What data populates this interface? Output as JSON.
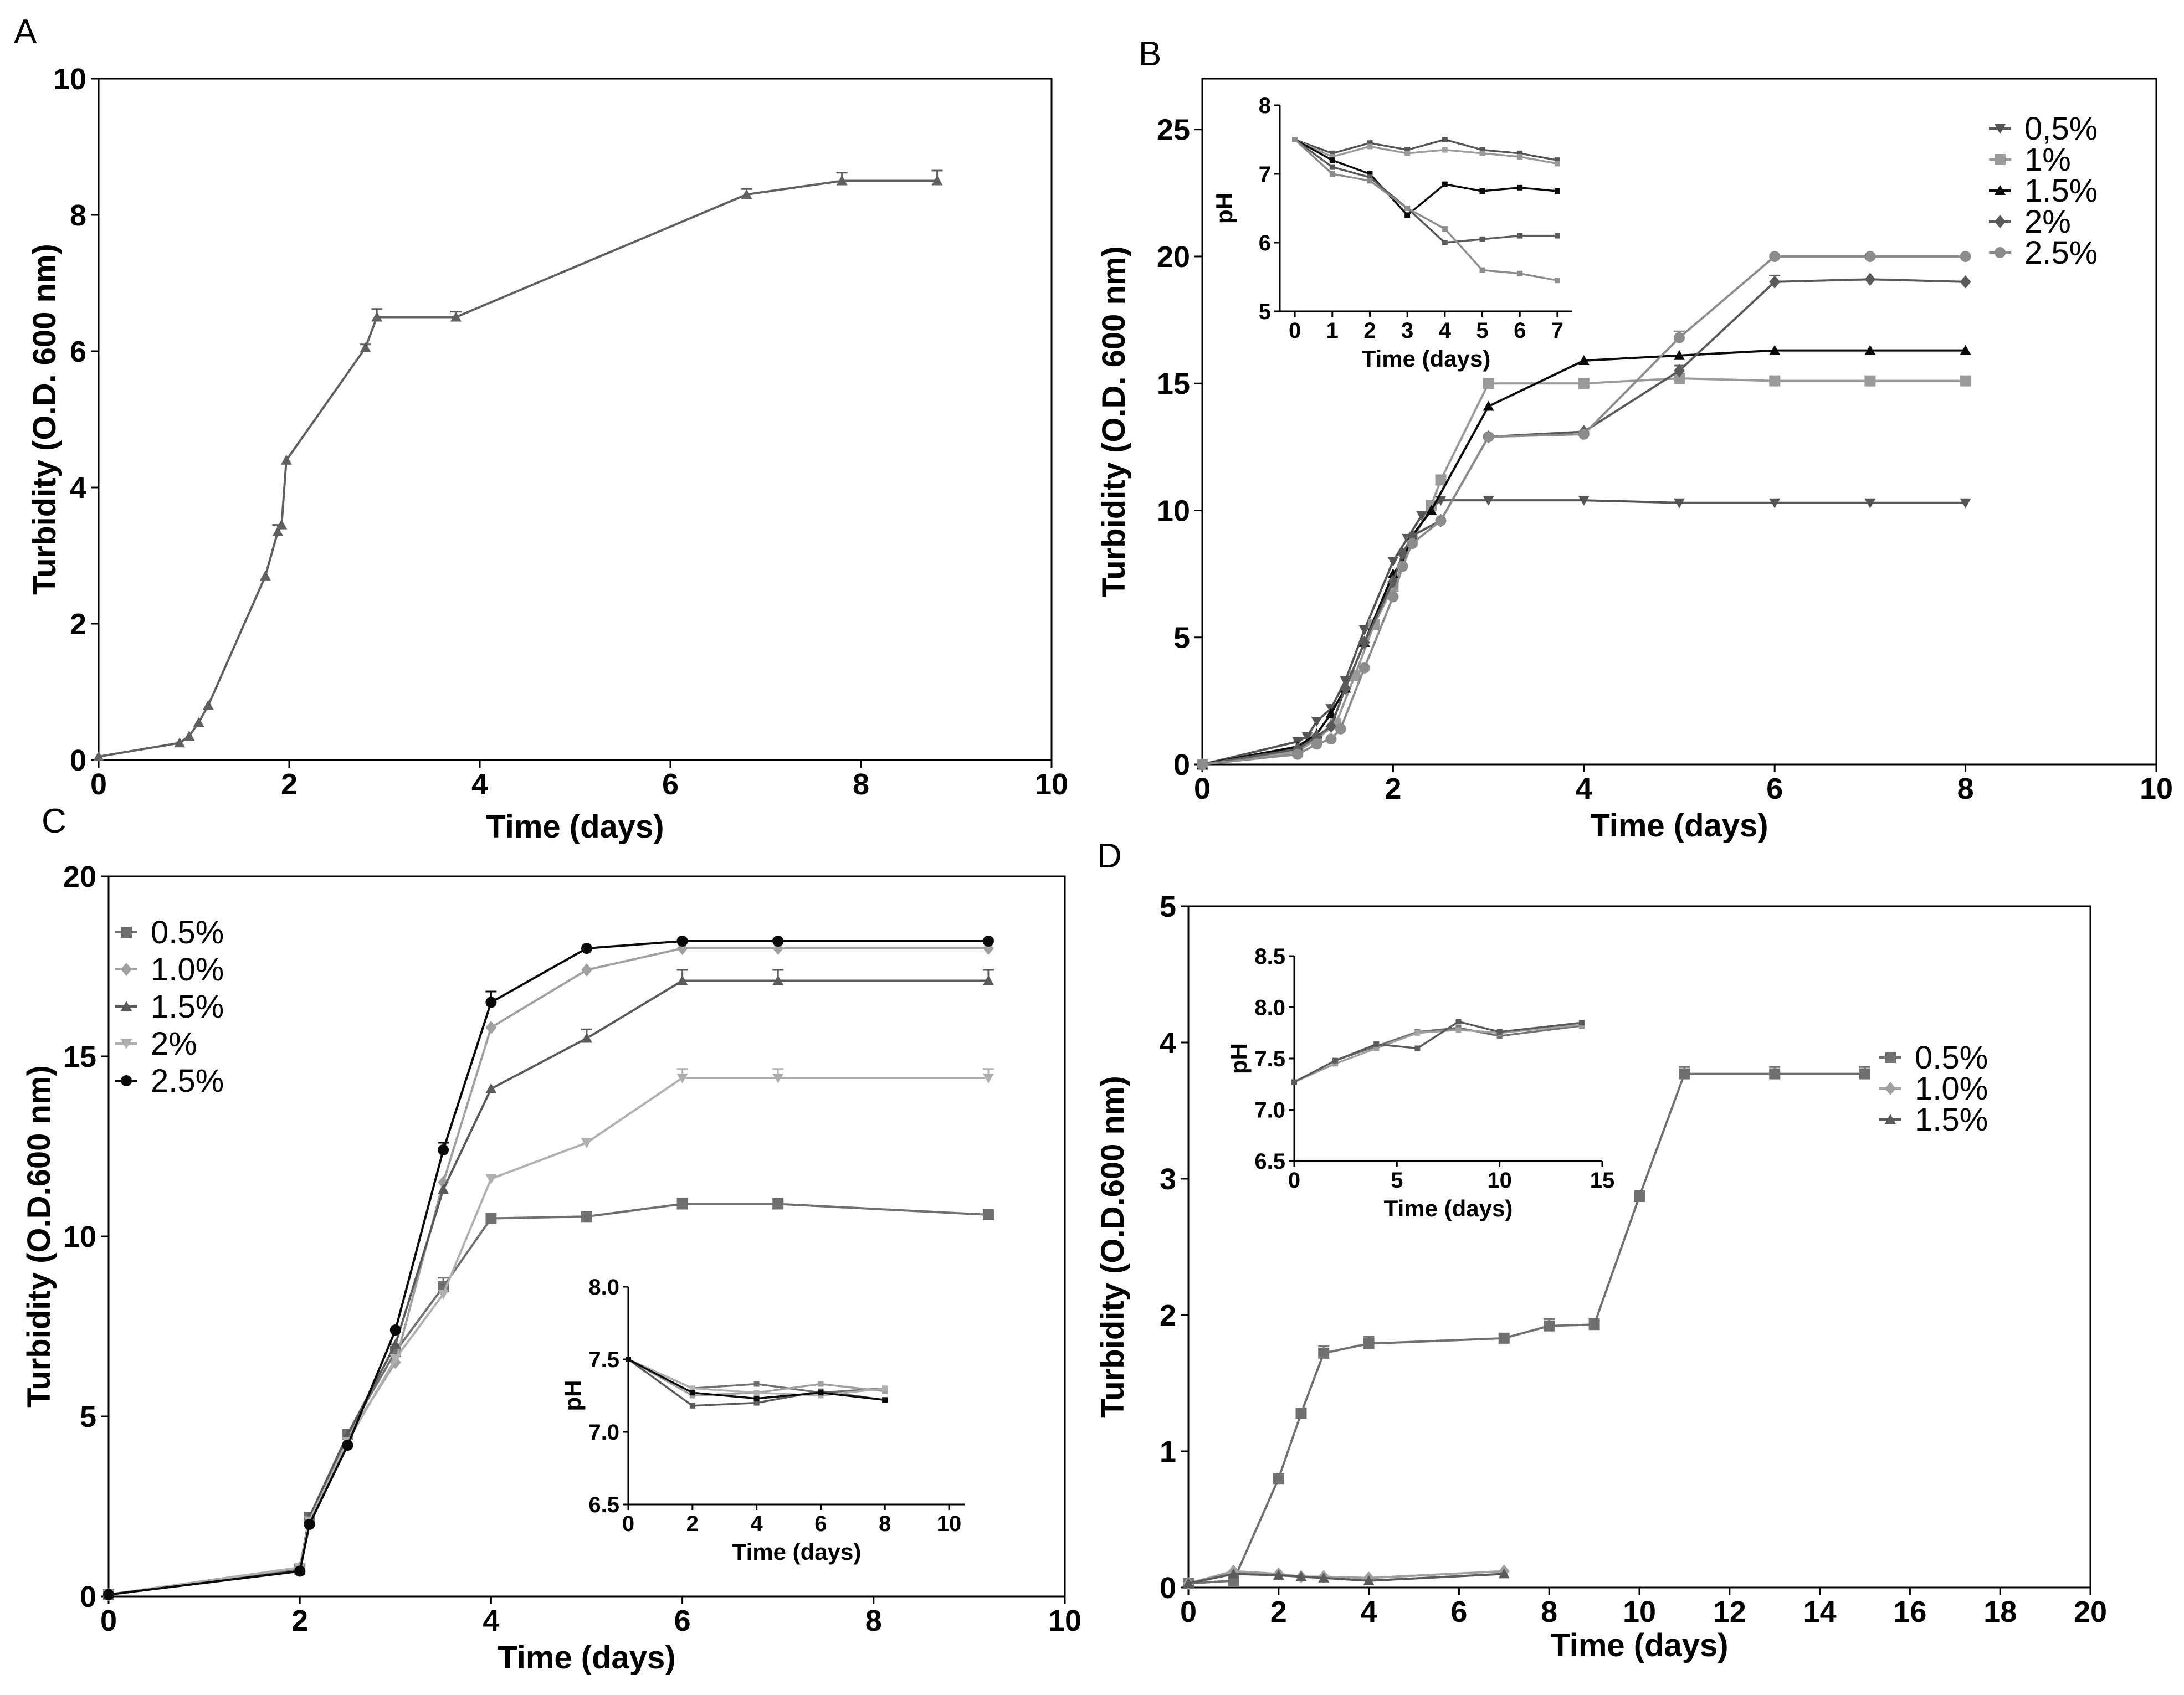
{
  "chart_data": [
    {
      "panel": "A",
      "type": "line",
      "title": "",
      "xlabel": "Time (days)",
      "ylabel": "Turbidity (O.D. 600 nm)",
      "xlim": [
        0,
        10
      ],
      "ylim": [
        0,
        10
      ],
      "xticks": [
        "0",
        "2",
        "4",
        "6",
        "8",
        "10"
      ],
      "yticks": [
        "0",
        "2",
        "4",
        "6",
        "8",
        "10"
      ],
      "legend": "none",
      "series": [
        {
          "name": "",
          "color": "#606060",
          "marker": "triangle",
          "x": [
            0,
            0.85,
            0.95,
            1.05,
            1.15,
            1.75,
            1.88,
            1.92,
            1.97,
            2.8,
            2.92,
            3.75,
            6.8,
            7.8,
            8.8
          ],
          "y": [
            0.05,
            0.25,
            0.35,
            0.55,
            0.8,
            2.7,
            3.35,
            3.45,
            4.4,
            6.05,
            6.5,
            6.5,
            8.3,
            8.5,
            8.5
          ],
          "err": [
            0,
            0,
            0,
            0,
            0,
            0,
            0.1,
            0,
            0,
            0.05,
            0.12,
            0.08,
            0.08,
            0.12,
            0.15
          ]
        }
      ]
    },
    {
      "panel": "B",
      "type": "line",
      "title": "",
      "xlabel": "Time (days)",
      "ylabel": "Turbidity (O.D. 600 nm)",
      "xlim": [
        0,
        10
      ],
      "ylim": [
        0,
        27
      ],
      "xticks": [
        "0",
        "2",
        "4",
        "6",
        "8",
        "10"
      ],
      "yticks": [
        "0",
        "5",
        "10",
        "15",
        "20",
        "25"
      ],
      "legend": "top-right",
      "series": [
        {
          "name": "0,5%",
          "color": "#555555",
          "marker": "triangle-down",
          "x": [
            0,
            1,
            1.1,
            1.2,
            1.35,
            1.5,
            1.7,
            2,
            2.15,
            2.3,
            2.5,
            3,
            4,
            5,
            6,
            7,
            8
          ],
          "y": [
            0,
            0.9,
            1.1,
            1.7,
            2.2,
            3.3,
            5.3,
            8,
            8.9,
            9.8,
            10.4,
            10.4,
            10.4,
            10.3,
            10.3,
            10.3,
            10.3
          ],
          "err": [
            0,
            0,
            0,
            0,
            0,
            0,
            0,
            0,
            0,
            0,
            0,
            0,
            0,
            0,
            0,
            0,
            0
          ]
        },
        {
          "name": "1%",
          "color": "#9a9a9a",
          "marker": "square",
          "x": [
            0,
            1,
            1.2,
            1.4,
            1.6,
            1.8,
            2,
            2.2,
            2.4,
            2.5,
            3,
            4,
            5,
            6,
            7,
            8
          ],
          "y": [
            0,
            0.5,
            1.0,
            1.6,
            3.5,
            5.5,
            7.0,
            8.8,
            10.2,
            11.2,
            15.0,
            15.0,
            15.2,
            15.1,
            15.1,
            15.1
          ],
          "err": [
            0,
            0,
            0,
            0,
            0,
            0,
            0,
            0,
            0,
            0,
            0,
            0,
            0,
            0,
            0,
            0
          ]
        },
        {
          "name": "1.5%",
          "color": "#0a0a0a",
          "marker": "triangle",
          "x": [
            0,
            1,
            1.2,
            1.35,
            1.5,
            1.7,
            2,
            2.1,
            2.2,
            2.4,
            3,
            4,
            5,
            6,
            7,
            8
          ],
          "y": [
            0,
            0.7,
            1.2,
            2.0,
            3.0,
            4.8,
            7.5,
            8.0,
            9.0,
            10.0,
            14.1,
            15.9,
            16.1,
            16.3,
            16.3,
            16.3
          ],
          "err": [
            0,
            0,
            0,
            0,
            0,
            0,
            0,
            0,
            0,
            0,
            0,
            0,
            0,
            0,
            0,
            0
          ]
        },
        {
          "name": "2%",
          "color": "#5a5a5a",
          "marker": "diamond",
          "x": [
            0,
            1,
            1.2,
            1.35,
            1.5,
            1.7,
            2,
            2.1,
            2.2,
            2.5,
            3,
            4,
            5,
            6,
            7,
            8
          ],
          "y": [
            0,
            0.6,
            1.1,
            1.5,
            3.0,
            4.8,
            7.2,
            8.3,
            9.0,
            9.6,
            12.9,
            13.1,
            15.5,
            19.0,
            19.1,
            19.0
          ],
          "err": [
            0,
            0,
            0,
            0,
            0,
            0,
            0,
            0,
            0,
            0,
            0,
            0,
            0.2,
            0.25,
            0,
            0
          ]
        },
        {
          "name": "2.5%",
          "color": "#8c8c8c",
          "marker": "circle",
          "x": [
            0,
            1,
            1.2,
            1.35,
            1.45,
            1.7,
            2,
            2.1,
            2.2,
            2.5,
            3,
            4,
            5,
            6,
            7,
            8
          ],
          "y": [
            0,
            0.4,
            0.8,
            1.0,
            1.4,
            3.8,
            6.6,
            7.8,
            8.7,
            9.6,
            12.9,
            13.0,
            16.8,
            20.0,
            20.0,
            20.0
          ],
          "err": [
            0,
            0,
            0,
            0,
            0,
            0,
            0,
            0,
            0,
            0,
            0,
            0,
            0.25,
            0,
            0,
            0
          ]
        }
      ],
      "inset": {
        "xlabel": "Time (days)",
        "ylabel": "pH",
        "xlim": [
          -0.4,
          7.4
        ],
        "ylim": [
          5,
          8
        ],
        "xticks": [
          "0",
          "1",
          "2",
          "3",
          "4",
          "5",
          "6",
          "7"
        ],
        "yticks": [
          "5",
          "6",
          "7",
          "8"
        ],
        "series": [
          {
            "name": "0,5%",
            "color": "#555555",
            "x": [
              0,
              1,
              2,
              3,
              4,
              5,
              6,
              7
            ],
            "y": [
              7.5,
              7.3,
              7.45,
              7.35,
              7.5,
              7.35,
              7.3,
              7.2
            ]
          },
          {
            "name": "1%",
            "color": "#9a9a9a",
            "x": [
              0,
              1,
              2,
              3,
              4,
              5,
              6,
              7
            ],
            "y": [
              7.5,
              7.25,
              7.4,
              7.3,
              7.35,
              7.3,
              7.25,
              7.15
            ]
          },
          {
            "name": "1.5%",
            "color": "#0a0a0a",
            "x": [
              0,
              1,
              2,
              3,
              4,
              5,
              6,
              7
            ],
            "y": [
              7.5,
              7.2,
              7.0,
              6.4,
              6.85,
              6.75,
              6.8,
              6.75
            ]
          },
          {
            "name": "2%",
            "color": "#5a5a5a",
            "x": [
              0,
              1,
              2,
              3,
              4,
              5,
              6,
              7
            ],
            "y": [
              7.5,
              7.1,
              6.95,
              6.5,
              6.0,
              6.05,
              6.1,
              6.1
            ]
          },
          {
            "name": "2.5%",
            "color": "#8c8c8c",
            "x": [
              0,
              1,
              2,
              3,
              4,
              5,
              6,
              7
            ],
            "y": [
              7.5,
              7.0,
              6.9,
              6.5,
              6.2,
              5.6,
              5.55,
              5.45
            ]
          }
        ]
      }
    },
    {
      "panel": "C",
      "type": "line",
      "title": "",
      "xlabel": "Time (days)",
      "ylabel": "Turbidity (O.D.600 nm)",
      "xlim": [
        0,
        10
      ],
      "ylim": [
        0,
        20
      ],
      "xticks": [
        "0",
        "2",
        "4",
        "6",
        "8",
        "10"
      ],
      "yticks": [
        "0",
        "5",
        "10",
        "15",
        "20"
      ],
      "legend": "top-left",
      "series": [
        {
          "name": "0.5%",
          "color": "#707070",
          "marker": "square",
          "x": [
            0,
            2,
            2.1,
            2.5,
            3,
            3.5,
            4,
            5,
            6,
            7,
            9.2
          ],
          "y": [
            0.05,
            0.75,
            2.2,
            4.5,
            6.8,
            8.6,
            10.5,
            10.55,
            10.9,
            10.9,
            10.6
          ],
          "err": [
            0,
            0,
            0,
            0,
            0.2,
            0.25,
            0,
            0,
            0.15,
            0.15,
            0
          ]
        },
        {
          "name": "1.0%",
          "color": "#a0a0a0",
          "marker": "diamond",
          "x": [
            0,
            2,
            2.1,
            2.5,
            3,
            3.5,
            4,
            5,
            6,
            7,
            9.2
          ],
          "y": [
            0.05,
            0.8,
            2.1,
            4.4,
            6.5,
            11.5,
            15.8,
            17.4,
            18.0,
            18.0,
            18.0
          ],
          "err": [
            0,
            0,
            0,
            0,
            0,
            0,
            0,
            0,
            0.25,
            0.25,
            0.25
          ]
        },
        {
          "name": "1.5%",
          "color": "#5a5a5a",
          "marker": "triangle",
          "x": [
            0,
            2,
            2.1,
            2.5,
            3,
            3.5,
            4,
            5,
            6,
            7,
            9.2
          ],
          "y": [
            0.05,
            0.8,
            2.2,
            4.5,
            7.0,
            11.3,
            14.1,
            15.5,
            17.1,
            17.1,
            17.1
          ],
          "err": [
            0,
            0,
            0,
            0,
            0,
            0,
            0,
            0.25,
            0.3,
            0.3,
            0.3
          ]
        },
        {
          "name": "2%",
          "color": "#b0b0b0",
          "marker": "triangle-down",
          "x": [
            0,
            2,
            2.1,
            2.5,
            3,
            3.5,
            4,
            5,
            6,
            7,
            9.2
          ],
          "y": [
            0.05,
            0.8,
            2.1,
            4.3,
            6.6,
            8.4,
            11.6,
            12.6,
            14.4,
            14.4,
            14.4
          ],
          "err": [
            0,
            0,
            0,
            0,
            0,
            0,
            0,
            0,
            0.25,
            0.25,
            0.25
          ]
        },
        {
          "name": "2.5%",
          "color": "#0a0a0a",
          "marker": "circle",
          "x": [
            0,
            2,
            2.1,
            2.5,
            3,
            3.5,
            4,
            5,
            6,
            7,
            9.2
          ],
          "y": [
            0.05,
            0.7,
            2.0,
            4.2,
            7.4,
            12.4,
            16.5,
            18.0,
            18.2,
            18.2,
            18.2
          ],
          "err": [
            0,
            0,
            0,
            0,
            0,
            0.2,
            0.3,
            0,
            0,
            0,
            0
          ]
        }
      ],
      "inset": {
        "xlabel": "Time (days)",
        "ylabel": "pH",
        "xlim": [
          0,
          10.5
        ],
        "ylim": [
          6.5,
          8.0
        ],
        "xticks": [
          "0",
          "2",
          "4",
          "6",
          "8",
          "10"
        ],
        "yticks": [
          "6.5",
          "7.0",
          "7.5",
          "8.0"
        ],
        "series": [
          {
            "name": "0.5%",
            "color": "#707070",
            "x": [
              0,
              2,
              4,
              6,
              8
            ],
            "y": [
              7.5,
              7.3,
              7.33,
              7.27,
              7.3
            ]
          },
          {
            "name": "1.0%",
            "color": "#a0a0a0",
            "x": [
              0,
              2,
              4,
              6,
              8
            ],
            "y": [
              7.5,
              7.25,
              7.27,
              7.33,
              7.28
            ]
          },
          {
            "name": "1.5%",
            "color": "#5a5a5a",
            "x": [
              0,
              2,
              4,
              6,
              8
            ],
            "y": [
              7.5,
              7.18,
              7.2,
              7.28,
              7.22
            ]
          },
          {
            "name": "2%",
            "color": "#b0b0b0",
            "x": [
              0,
              2,
              4,
              6,
              8
            ],
            "y": [
              7.5,
              7.3,
              7.27,
              7.25,
              7.3
            ]
          },
          {
            "name": "2.5%",
            "color": "#0a0a0a",
            "x": [
              0,
              2,
              4,
              6,
              8
            ],
            "y": [
              7.5,
              7.27,
              7.23,
              7.27,
              7.22
            ]
          }
        ]
      }
    },
    {
      "panel": "D",
      "type": "line",
      "title": "",
      "xlabel": "Time (days)",
      "ylabel": "Turbidity (O.D.600 nm)",
      "xlim": [
        0,
        20
      ],
      "ylim": [
        0,
        5
      ],
      "xticks": [
        "0",
        "2",
        "4",
        "6",
        "8",
        "10",
        "12",
        "14",
        "16",
        "18",
        "20"
      ],
      "yticks": [
        "0",
        "1",
        "2",
        "3",
        "4",
        "5"
      ],
      "legend": "right",
      "series": [
        {
          "name": "0.5%",
          "color": "#707070",
          "marker": "square",
          "x": [
            0,
            1,
            2,
            2.5,
            3,
            4,
            7,
            8,
            9,
            10,
            11,
            13,
            15
          ],
          "y": [
            0.03,
            0.05,
            0.8,
            1.28,
            1.72,
            1.79,
            1.83,
            1.92,
            1.93,
            2.87,
            3.77,
            3.77,
            3.77
          ],
          "err": [
            0,
            0,
            0,
            0,
            0.05,
            0.05,
            0.03,
            0.05,
            0.04,
            0.04,
            0.05,
            0.05,
            0.05
          ]
        },
        {
          "name": "1.0%",
          "color": "#a0a0a0",
          "marker": "diamond",
          "x": [
            0,
            1,
            2,
            2.5,
            3,
            4,
            7
          ],
          "y": [
            0.03,
            0.12,
            0.1,
            0.08,
            0.08,
            0.07,
            0.12
          ],
          "err": [
            0,
            0,
            0,
            0,
            0,
            0,
            0
          ]
        },
        {
          "name": "1.5%",
          "color": "#5a5a5a",
          "marker": "triangle",
          "x": [
            0,
            1,
            2,
            2.5,
            3,
            4,
            7
          ],
          "y": [
            0.03,
            0.1,
            0.09,
            0.08,
            0.07,
            0.05,
            0.1
          ],
          "err": [
            0,
            0,
            0,
            0,
            0,
            0,
            0
          ]
        }
      ],
      "inset": {
        "xlabel": "Time (days)",
        "ylabel": "pH",
        "xlim": [
          0,
          15
        ],
        "ylim": [
          6.5,
          8.5
        ],
        "xticks": [
          "0",
          "5",
          "10",
          "15"
        ],
        "yticks": [
          "6.5",
          "7.0",
          "7.5",
          "8.0",
          "8.5"
        ],
        "series": [
          {
            "name": "0.5%",
            "color": "#707070",
            "x": [
              0,
              2,
              4,
              6,
              8,
              10,
              14
            ],
            "y": [
              7.27,
              7.48,
              7.62,
              7.76,
              7.8,
              7.72,
              7.82
            ]
          },
          {
            "name": "1.0%",
            "color": "#a0a0a0",
            "x": [
              0,
              2,
              4,
              6,
              8,
              10,
              14
            ],
            "y": [
              7.27,
              7.45,
              7.6,
              7.75,
              7.78,
              7.75,
              7.83
            ]
          },
          {
            "name": "1.5%",
            "color": "#5a5a5a",
            "x": [
              0,
              2,
              4,
              6,
              8,
              10,
              14
            ],
            "y": [
              7.27,
              7.48,
              7.64,
              7.6,
              7.86,
              7.76,
              7.85
            ]
          }
        ]
      }
    }
  ]
}
